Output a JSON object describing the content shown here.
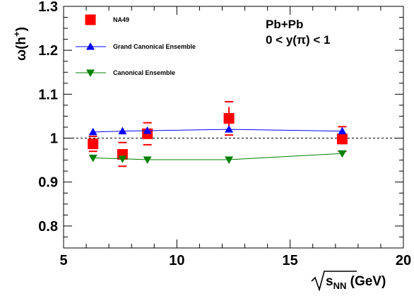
{
  "chart_data": {
    "type": "scatter",
    "x_range": [
      5,
      20
    ],
    "y_range": [
      0.75,
      1.3
    ],
    "x_ticks": [
      5,
      10,
      15,
      20
    ],
    "y_ticks": [
      0.8,
      0.9,
      1,
      1.1,
      1.2,
      1.3
    ],
    "x_tick_labels": [
      "5",
      "10",
      "15",
      "20"
    ],
    "y_tick_labels": [
      "0.8",
      "0.9",
      "1",
      "1.1",
      "1.2",
      "1.3"
    ],
    "xlabel": {
      "main": "s",
      "sub": "NN",
      "unit": " (GeV)"
    },
    "ylabel": {
      "main": "ω(h",
      "sup": "+",
      "close": ")"
    },
    "reference_line": 1.0,
    "annotations": [
      "Pb+Pb",
      "0 < y(π) < 1"
    ],
    "legend_position": "top-left",
    "series": [
      {
        "name": "NA49",
        "marker": "square",
        "color": "#ff0000",
        "x": [
          6.3,
          7.6,
          8.7,
          12.3,
          17.3
        ],
        "y": [
          0.987,
          0.963,
          1.01,
          1.045,
          0.998
        ],
        "err_stat": [
          0.012,
          0.012,
          0.012,
          0.026,
          0.012
        ],
        "err_sys": [
          0.017,
          0.027,
          0.025,
          0.038,
          0.028
        ]
      },
      {
        "name": "Grand Canonical Ensemble",
        "marker": "triangle-up",
        "color": "#0000ff",
        "x": [
          6.3,
          7.6,
          8.7,
          12.3,
          17.3
        ],
        "y": [
          1.014,
          1.016,
          1.017,
          1.02,
          1.016
        ]
      },
      {
        "name": "Canonical Ensemble",
        "marker": "triangle-down",
        "color": "#008000",
        "x": [
          6.3,
          7.6,
          8.7,
          12.3,
          17.3
        ],
        "y": [
          0.955,
          0.953,
          0.951,
          0.951,
          0.965
        ]
      }
    ]
  }
}
